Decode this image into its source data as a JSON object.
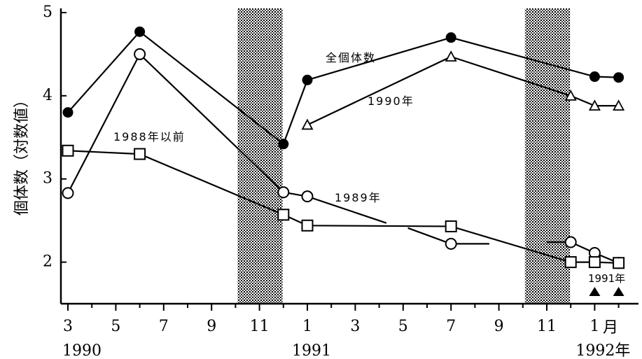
{
  "chart_data": {
    "type": "line",
    "ylabel": "個体数（対数値）",
    "xlabel_unit": "月",
    "year_labels": [
      {
        "month_index": 0,
        "label": "1990"
      },
      {
        "month_index": 10,
        "label": "1991"
      },
      {
        "month_index": 22,
        "label": "1992年"
      }
    ],
    "x_ticks": [
      {
        "month_index": 0,
        "label": "3"
      },
      {
        "month_index": 2,
        "label": "5"
      },
      {
        "month_index": 4,
        "label": "7"
      },
      {
        "month_index": 6,
        "label": "9"
      },
      {
        "month_index": 8,
        "label": "11"
      },
      {
        "month_index": 10,
        "label": "1"
      },
      {
        "month_index": 12,
        "label": "3"
      },
      {
        "month_index": 14,
        "label": "5"
      },
      {
        "month_index": 16,
        "label": "7"
      },
      {
        "month_index": 18,
        "label": "9"
      },
      {
        "month_index": 20,
        "label": "11"
      },
      {
        "month_index": 22,
        "label": "1"
      }
    ],
    "y_ticks": [
      2,
      3,
      4,
      5
    ],
    "ylim": [
      1.5,
      5
    ],
    "xlim": [
      0,
      23.5
    ],
    "shaded_periods": [
      [
        7,
        9
      ],
      [
        19,
        21
      ]
    ],
    "series": [
      {
        "name": "全個体数",
        "marker": "filled-circle",
        "points": [
          [
            0,
            3.8
          ],
          [
            3,
            4.77
          ],
          [
            9,
            3.42
          ],
          [
            10,
            4.19
          ],
          [
            16,
            4.7
          ],
          [
            22,
            4.23
          ],
          [
            23,
            4.22
          ]
        ]
      },
      {
        "name": "1990年",
        "marker": "open-triangle",
        "points": [
          [
            10,
            3.65
          ],
          [
            16,
            4.47
          ],
          [
            21,
            4.0
          ],
          [
            22,
            3.88
          ],
          [
            23,
            3.88
          ]
        ]
      },
      {
        "name": "1989年",
        "marker": "open-circle",
        "segments": [
          [
            [
              0,
              2.83
            ],
            [
              3,
              4.5
            ],
            [
              9,
              2.84
            ],
            [
              10,
              2.79
            ]
          ],
          [
            [
              10,
              2.79
            ],
            [
              13.3,
              2.47
            ]
          ],
          [
            [
              14.2,
              2.41
            ],
            [
              16,
              2.22
            ],
            [
              17.6,
              2.22
            ]
          ],
          [
            [
              20,
              2.24
            ],
            [
              21,
              2.24
            ],
            [
              22,
              2.11
            ],
            [
              23,
              1.99
            ]
          ]
        ],
        "points": [
          [
            0,
            2.83
          ],
          [
            3,
            4.5
          ],
          [
            9,
            2.84
          ],
          [
            10,
            2.79
          ],
          [
            16,
            2.22
          ],
          [
            21,
            2.24
          ],
          [
            22,
            2.11
          ],
          [
            23,
            1.99
          ]
        ]
      },
      {
        "name": "1988年以前",
        "marker": "open-square",
        "points": [
          [
            0,
            3.34
          ],
          [
            3,
            3.3
          ],
          [
            9,
            2.57
          ],
          [
            10,
            2.44
          ],
          [
            16,
            2.43
          ],
          [
            21,
            2.0
          ],
          [
            22,
            2.0
          ],
          [
            23,
            1.99
          ]
        ]
      },
      {
        "name": "1991年",
        "marker": "filled-triangle",
        "points": [
          [
            22,
            1.5
          ],
          [
            23,
            1.5
          ]
        ]
      }
    ],
    "series_labels": [
      "全個体数",
      "1990年",
      "1989年",
      "1988年以前",
      "1991年"
    ]
  }
}
